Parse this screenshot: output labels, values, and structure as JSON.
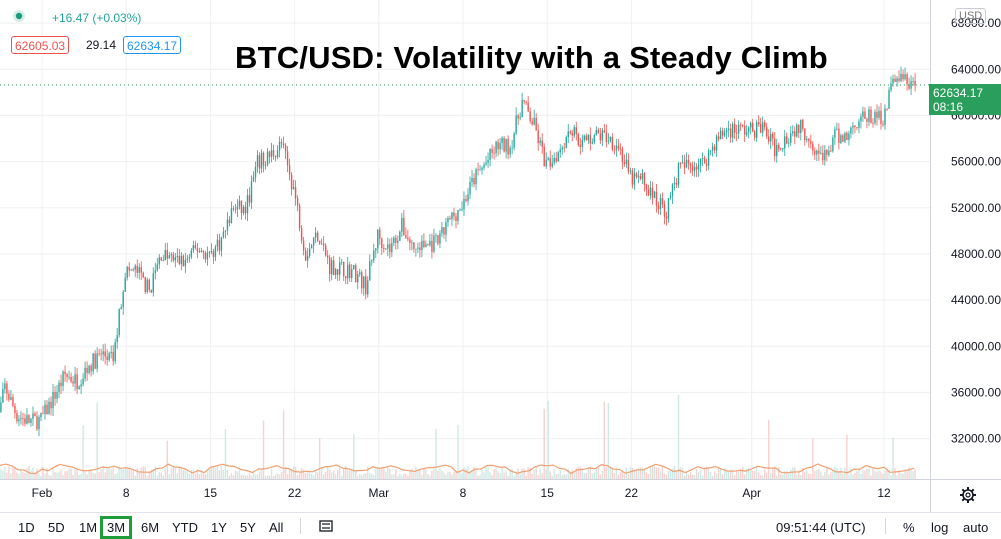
{
  "header": {
    "change": "+16.47 (+0.03%)",
    "bid": "62605.03",
    "spread": "29.14",
    "ask": "62634.17"
  },
  "currency_badge": "USD",
  "price_label": {
    "price": "62634.17",
    "countdown": "08:16"
  },
  "colors": {
    "up": "#26a69a",
    "down": "#ef5350",
    "tag": "#2a9e5c",
    "grid": "#eef0f3",
    "volume": "#e0dfe3",
    "ma": "#f0a070"
  },
  "toolbar": {
    "ranges": [
      "1D",
      "5D",
      "1M",
      "3M",
      "6M",
      "YTD",
      "1Y",
      "5Y",
      "All"
    ],
    "active_range": "3M",
    "compare_icon": "compare-icon",
    "time": "09:51:44 (UTC)",
    "percent": "%",
    "log": "log",
    "auto": "auto"
  },
  "settings_icon": "gear-icon",
  "chart_data": {
    "type": "candlestick",
    "title": "BTC/USD: Volatility with a Steady Climb",
    "xlabel": "",
    "ylabel": "",
    "ylim": [
      28500,
      70000
    ],
    "y_ticks": [
      32000,
      36000,
      40000,
      44000,
      48000,
      52000,
      56000,
      60000,
      64000,
      68000
    ],
    "y_tick_labels": [
      "32000.00",
      "36000.00",
      "40000.00",
      "44000.00",
      "48000.00",
      "52000.00",
      "56000.00",
      "60000.00",
      "64000.00",
      "68000.00"
    ],
    "x_tick_labels": [
      "Feb",
      "8",
      "15",
      "22",
      "Mar",
      "8",
      "15",
      "22",
      "Apr",
      "12"
    ],
    "x_tick_dates": [
      "2021-02-01",
      "2021-02-08",
      "2021-02-15",
      "2021-02-22",
      "2021-03-01",
      "2021-03-08",
      "2021-03-15",
      "2021-03-22",
      "2021-04-01",
      "2021-04-12"
    ],
    "last_price": 62634.17,
    "grid": true,
    "price_path": [
      [
        "2021-01-28",
        31500
      ],
      [
        "2021-01-29",
        36500
      ],
      [
        "2021-01-30",
        34000
      ],
      [
        "2021-01-31",
        33500
      ],
      [
        "2021-02-01",
        33600
      ],
      [
        "2021-02-02",
        35500
      ],
      [
        "2021-02-03",
        37500
      ],
      [
        "2021-02-04",
        37000
      ],
      [
        "2021-02-05",
        38300
      ],
      [
        "2021-02-06",
        39300
      ],
      [
        "2021-02-07",
        38800
      ],
      [
        "2021-02-08",
        46500
      ],
      [
        "2021-02-09",
        46500
      ],
      [
        "2021-02-10",
        44800
      ],
      [
        "2021-02-11",
        48000
      ],
      [
        "2021-02-12",
        47500
      ],
      [
        "2021-02-13",
        47300
      ],
      [
        "2021-02-14",
        48500
      ],
      [
        "2021-02-15",
        47900
      ],
      [
        "2021-02-16",
        49200
      ],
      [
        "2021-02-17",
        52000
      ],
      [
        "2021-02-18",
        51800
      ],
      [
        "2021-02-19",
        55800
      ],
      [
        "2021-02-20",
        56500
      ],
      [
        "2021-02-21",
        57500
      ],
      [
        "2021-02-22",
        53700
      ],
      [
        "2021-02-23",
        48000
      ],
      [
        "2021-02-24",
        49800
      ],
      [
        "2021-02-25",
        47000
      ],
      [
        "2021-02-26",
        46700
      ],
      [
        "2021-02-27",
        46500
      ],
      [
        "2021-02-28",
        45200
      ],
      [
        "2021-03-01",
        49600
      ],
      [
        "2021-03-02",
        48400
      ],
      [
        "2021-03-03",
        50400
      ],
      [
        "2021-03-04",
        48400
      ],
      [
        "2021-03-05",
        48800
      ],
      [
        "2021-03-06",
        48900
      ],
      [
        "2021-03-07",
        51000
      ],
      [
        "2021-03-08",
        52200
      ],
      [
        "2021-03-09",
        54500
      ],
      [
        "2021-03-10",
        55900
      ],
      [
        "2021-03-11",
        57400
      ],
      [
        "2021-03-12",
        57300
      ],
      [
        "2021-03-13",
        61200
      ],
      [
        "2021-03-14",
        59100
      ],
      [
        "2021-03-15",
        55600
      ],
      [
        "2021-03-16",
        56900
      ],
      [
        "2021-03-17",
        58900
      ],
      [
        "2021-03-18",
        57600
      ],
      [
        "2021-03-19",
        58300
      ],
      [
        "2021-03-20",
        58200
      ],
      [
        "2021-03-21",
        57400
      ],
      [
        "2021-03-22",
        54500
      ],
      [
        "2021-03-23",
        54400
      ],
      [
        "2021-03-24",
        52800
      ],
      [
        "2021-03-25",
        51700
      ],
      [
        "2021-03-26",
        55300
      ],
      [
        "2021-03-27",
        55800
      ],
      [
        "2021-03-28",
        55800
      ],
      [
        "2021-03-29",
        57600
      ],
      [
        "2021-03-30",
        58800
      ],
      [
        "2021-03-31",
        58800
      ],
      [
        "2021-04-01",
        58700
      ],
      [
        "2021-04-02",
        59000
      ],
      [
        "2021-04-03",
        57100
      ],
      [
        "2021-04-04",
        58200
      ],
      [
        "2021-04-05",
        59100
      ],
      [
        "2021-04-06",
        58000
      ],
      [
        "2021-04-07",
        56000
      ],
      [
        "2021-04-08",
        58100
      ],
      [
        "2021-04-09",
        58200
      ],
      [
        "2021-04-10",
        59800
      ],
      [
        "2021-04-11",
        59800
      ],
      [
        "2021-04-12",
        59900
      ],
      [
        "2021-04-13",
        63500
      ],
      [
        "2021-04-14",
        62900
      ],
      [
        "2021-04-14T12:00",
        62634
      ]
    ]
  }
}
